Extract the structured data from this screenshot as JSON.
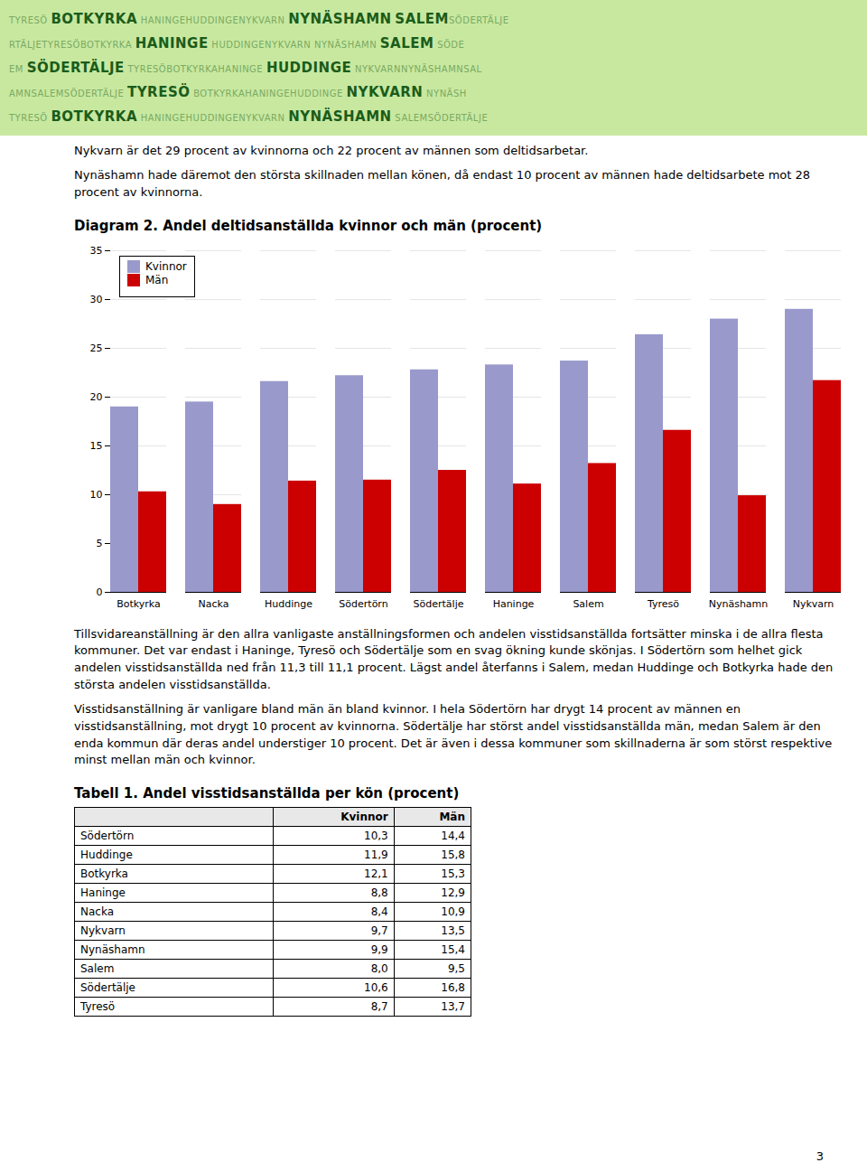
{
  "header": {
    "rows": [
      {
        "text": "TYRESÖ  BOTKYRKA  HANINGEHUDDINGENYKVARN  NYNÄSHAMN  SALEMSÖDERTÄLJE",
        "bold": [
          "BOTKYRKA",
          "NYNÄSHAMN",
          "SALEM"
        ]
      },
      {
        "text": "RTÄLJETYRESÖBOTKYRKA  HANINGE  HUDDINGENYKVARN NYNÄSHAMN  SALEM  SÖDE",
        "bold": [
          "HANINGE",
          "SALEM"
        ]
      },
      {
        "text": "EM  SÖDERTÄLJE  TYRESÖBOTKYRKAHANINGE  HUDDINGE  NYKVARNNYNÄSHAMNSAL",
        "bold": [
          "SÖDERTÄLJE",
          "HUDDINGE"
        ]
      },
      {
        "text": "AMNSALEMSÖDERTÄLJE  TYRESÖ  BOTKYRKAHANINGEHUDDINGE  NYKVARN  NYNÄSH",
        "bold": [
          "TYRESÖ",
          "NYKVARN"
        ]
      },
      {
        "text": "TYRESÖ  BOTKYRKA  HANINGEHUDDINGENYKVARN  NYNÄSHAMN  SALEMSÖDERTÄLJE",
        "bold": [
          "BOTKYRKA",
          "NYNÄSHAMN"
        ]
      }
    ]
  },
  "pre_texts": [
    "Nykvarn är det 29 procent av kvinnorna och 22 procent av männen som deltidsarbetar.",
    "Nynäshamn hade däremot den största skillnaden mellan könen, då endast 10 procent av männen hade deltidsarbete mot 28 procent av kvinnorna."
  ],
  "chart_data": {
    "type": "bar",
    "title": "Diagram 2. Andel deltidsanställda kvinnor och män (procent)",
    "categories": [
      "Botkyrka",
      "Nacka",
      "Huddinge",
      "Södertörn",
      "Södertälje",
      "Haninge",
      "Salem",
      "Tyresö",
      "Nynäshamn",
      "Nykvarn"
    ],
    "series": [
      {
        "name": "Kvinnor",
        "color": "#9999cc",
        "values": [
          19.0,
          19.5,
          21.6,
          22.2,
          22.8,
          23.3,
          23.7,
          26.4,
          28.0,
          29.0
        ]
      },
      {
        "name": "Män",
        "color": "#cc0000",
        "values": [
          10.3,
          9.0,
          11.4,
          11.5,
          12.5,
          11.1,
          13.2,
          16.6,
          9.9,
          21.7
        ]
      }
    ],
    "ylim": [
      0,
      35
    ],
    "yticks": [
      0,
      5,
      10,
      15,
      20,
      25,
      30,
      35
    ],
    "grid": true,
    "legend": "upper left"
  },
  "body_texts": [
    "Tillsvidareanställning är den allra vanligaste anställningsformen och andelen visstidsanställda fortsätter minska i de allra flesta kommuner. Det var endast i Haninge, Tyresö och Södertälje som en svag ökning kunde skönjas. I Södertörn som helhet gick andelen visstidsanställda ned från 11,3 till 11,1 procent. Lägst andel återfanns i Salem, medan Huddinge och Botkyrka hade den största andelen visstidsanställda.",
    "Visstidsanställning är vanligare bland män än bland kvinnor. I hela Södertörn har drygt 14 procent av männen en visstidsanställning, mot drygt 10 procent av kvinnorna. Södertälje har störst andel visstidsanställda män, medan Salem är den enda kommun där deras andel understiger 10 procent. Det är även i dessa kommuner som skillnaderna är som störst respektive minst mellan män och kvinnor."
  ],
  "table": {
    "title": "Tabell 1. Andel visstidsanställda per kön (procent)",
    "header": [
      "",
      "Kvinnor",
      "Män"
    ],
    "rows": [
      [
        "Södertörn",
        "10,3",
        "14,4"
      ],
      [
        "Huddinge",
        "11,9",
        "15,8"
      ],
      [
        "Botkyrka",
        "12,1",
        "15,3"
      ],
      [
        "Haninge",
        "8,8",
        "12,9"
      ],
      [
        "Nacka",
        "8,4",
        "10,9"
      ],
      [
        "Nykvarn",
        "9,7",
        "13,5"
      ],
      [
        "Nynäshamn",
        "9,9",
        "15,4"
      ],
      [
        "Salem",
        "8,0",
        "9,5"
      ],
      [
        "Södertälje",
        "10,6",
        "16,8"
      ],
      [
        "Tyresö",
        "8,7",
        "13,7"
      ]
    ]
  },
  "page_number": "3"
}
